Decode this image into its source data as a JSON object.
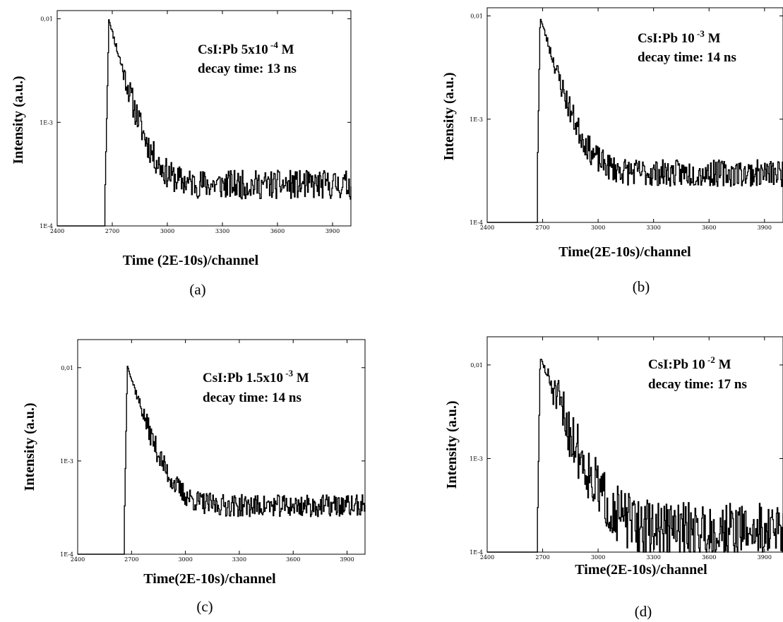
{
  "chart_data": [
    {
      "type": "line",
      "panel_label": "(a)",
      "xlabel": "Time (2E-10s)/channel",
      "ylabel": "Intensity (a.u.)",
      "xlim": [
        2400,
        4000
      ],
      "ylim": [
        0.0001,
        0.012
      ],
      "yscale": "log",
      "x_ticks": [
        "2400",
        "2700",
        "3000",
        "3300",
        "3600",
        "3900"
      ],
      "y_ticks": [
        "1E-4",
        "1E-3",
        "0,01"
      ],
      "annotation": {
        "prefix": "CsI:Pb 5x10",
        "sup": "-4",
        "suffix": " M",
        "line2": "decay time: 13 ns"
      },
      "series": [
        {
          "peak_x": 2680,
          "peak_y": 0.0098,
          "tau": 65,
          "floor": 0.00025,
          "rise_x": 2660,
          "noise": 0.14,
          "seed": 11
        }
      ]
    },
    {
      "type": "line",
      "panel_label": "(b)",
      "xlabel": "Time(2E-10s)/channel",
      "ylabel": "Intensity (a.u.)",
      "xlim": [
        2400,
        4000
      ],
      "ylim": [
        0.0001,
        0.012
      ],
      "yscale": "log",
      "x_ticks": [
        "2400",
        "2700",
        "3000",
        "3300",
        "3600",
        "3900"
      ],
      "y_ticks": [
        "1E-4",
        "1E-3",
        "0,01"
      ],
      "annotation": {
        "prefix": "CsI:Pb 10",
        "sup": "-3",
        "suffix": "  M",
        "line2": "decay time: 14 ns"
      },
      "series": [
        {
          "peak_x": 2685,
          "peak_y": 0.0097,
          "tau": 70,
          "floor": 0.0003,
          "rise_x": 2670,
          "noise": 0.13,
          "seed": 23
        }
      ]
    },
    {
      "type": "line",
      "panel_label": "(c)",
      "xlabel": "Time(2E-10s)/channel",
      "ylabel": "Intensity (a.u.)",
      "xlim": [
        2400,
        4000
      ],
      "ylim": [
        0.0001,
        0.02
      ],
      "yscale": "log",
      "x_ticks": [
        "2400",
        "2700",
        "3000",
        "3300",
        "3600",
        "3900"
      ],
      "y_ticks": [
        "1E-4",
        "1E-3",
        "0,01"
      ],
      "annotation": {
        "prefix": "CsI:Pb 1.5x10",
        "sup": "-3",
        "suffix": " M",
        "line2": "decay time: 14 ns"
      },
      "series": [
        {
          "peak_x": 2675,
          "peak_y": 0.0105,
          "tau": 70,
          "floor": 0.00033,
          "rise_x": 2660,
          "noise": 0.12,
          "seed": 37
        }
      ]
    },
    {
      "type": "line",
      "panel_label": "(d)",
      "xlabel": "Time(2E-10s)/channel",
      "ylabel": "Intensity (a.u.)",
      "xlim": [
        2400,
        4000
      ],
      "ylim": [
        0.0001,
        0.02
      ],
      "yscale": "log",
      "x_ticks": [
        "2400",
        "2700",
        "3000",
        "3300",
        "3600",
        "3900"
      ],
      "y_ticks": [
        "1E-4",
        "1E-3",
        "0,01"
      ],
      "annotation": {
        "prefix": "CsI:Pb 10",
        "sup": "-2",
        "suffix": " M",
        "line2": "decay time: 17 ns"
      },
      "series": [
        {
          "peak_x": 2685,
          "peak_y": 0.012,
          "tau": 85,
          "floor": 0.00017,
          "rise_x": 2670,
          "noise": 0.3,
          "seed": 51
        }
      ]
    }
  ]
}
